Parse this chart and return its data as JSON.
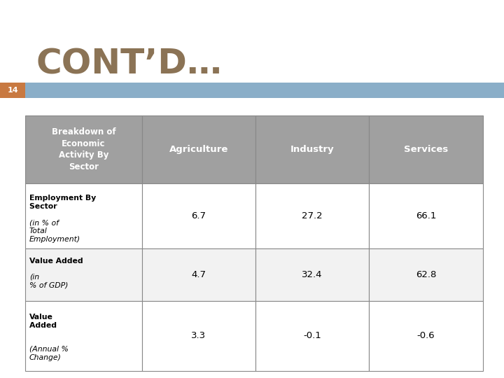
{
  "title": "CONT’D…",
  "title_color": "#8B7355",
  "title_fontsize": 36,
  "page_number": "14",
  "bar_color": "#8aaec8",
  "page_num_color": "#c87941",
  "header_bg": "#a0a0a0",
  "row_bg_even": "#ffffff",
  "row_bg_odd": "#f2f2f2",
  "border_color": "#888888",
  "col_headers": [
    "Agriculture",
    "Industry",
    "Services"
  ],
  "data_values": [
    [
      "6.7",
      "27.2",
      "66.1"
    ],
    [
      "4.7",
      "32.4",
      "62.8"
    ],
    [
      "3.3",
      "-0.1",
      "-0.6"
    ]
  ]
}
